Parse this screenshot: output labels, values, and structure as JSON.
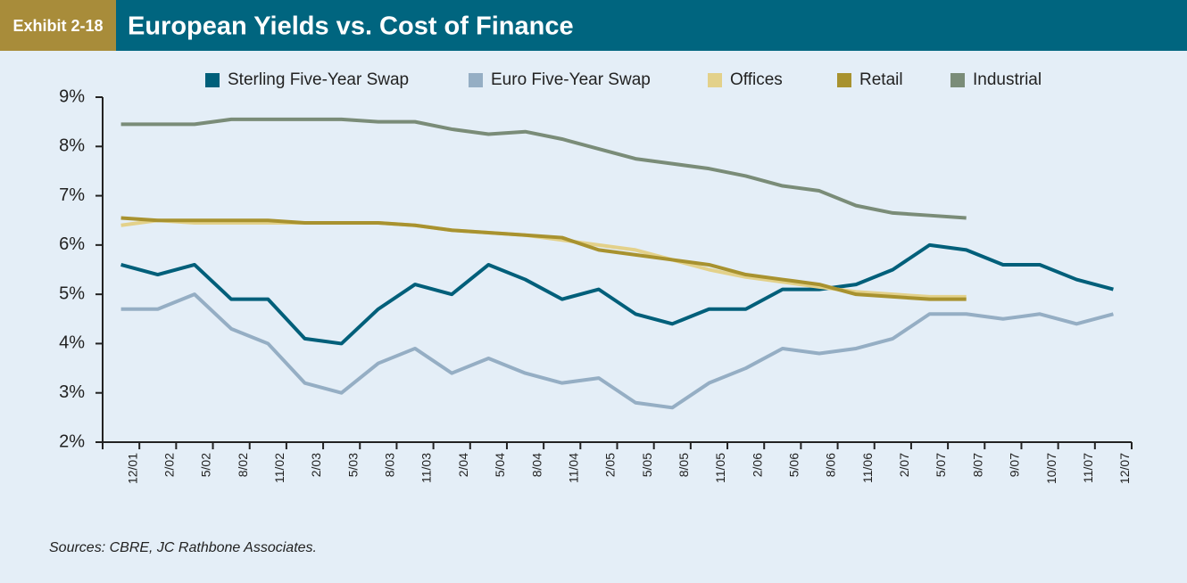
{
  "chart_data": {
    "type": "line",
    "exhibit": "Exhibit 2-18",
    "title": "European Yields vs. Cost of Finance",
    "source": "Sources: CBRE, JC Rathbone Associates.",
    "categories": [
      "12/01",
      "2/02",
      "5/02",
      "8/02",
      "11/02",
      "2/03",
      "5/03",
      "8/03",
      "11/03",
      "2/04",
      "5/04",
      "8/04",
      "11/04",
      "2/05",
      "5/05",
      "8/05",
      "11/05",
      "2/06",
      "5/06",
      "8/06",
      "11/06",
      "2/07",
      "5/07",
      "8/07",
      "9/07",
      "10/07",
      "11/07",
      "12/07"
    ],
    "series": [
      {
        "name": "Sterling Five-Year Swap",
        "color": "#005f7a",
        "values": [
          5.6,
          5.4,
          5.6,
          4.9,
          4.9,
          4.1,
          4.0,
          4.7,
          5.2,
          5.0,
          5.6,
          5.3,
          4.9,
          5.1,
          4.6,
          4.4,
          4.7,
          4.7,
          5.1,
          5.1,
          5.2,
          5.5,
          6.0,
          5.9,
          5.6,
          5.6,
          5.3,
          5.1
        ]
      },
      {
        "name": "Euro Five-Year Swap",
        "color": "#95aec4",
        "values": [
          4.7,
          4.7,
          5.0,
          4.3,
          4.0,
          3.2,
          3.0,
          3.6,
          3.9,
          3.4,
          3.7,
          3.4,
          3.2,
          3.3,
          2.8,
          2.7,
          3.2,
          3.5,
          3.9,
          3.8,
          3.9,
          4.1,
          4.6,
          4.6,
          4.5,
          4.6,
          4.4,
          4.6
        ]
      },
      {
        "name": "Offices",
        "color": "#e3d18a",
        "values": [
          6.4,
          6.5,
          6.45,
          6.45,
          6.45,
          6.45,
          6.45,
          6.45,
          6.4,
          6.3,
          6.25,
          6.2,
          6.1,
          6.0,
          5.9,
          5.7,
          5.5,
          5.35,
          5.25,
          5.15,
          5.05,
          5.0,
          4.95,
          4.95,
          null,
          null,
          null,
          null
        ]
      },
      {
        "name": "Retail",
        "color": "#a8922f",
        "values": [
          6.55,
          6.5,
          6.5,
          6.5,
          6.5,
          6.45,
          6.45,
          6.45,
          6.4,
          6.3,
          6.25,
          6.2,
          6.15,
          5.9,
          5.8,
          5.7,
          5.6,
          5.4,
          5.3,
          5.2,
          5.0,
          4.95,
          4.9,
          4.9,
          null,
          null,
          null,
          null
        ]
      },
      {
        "name": "Industrial",
        "color": "#7a8c78",
        "values": [
          8.45,
          8.45,
          8.45,
          8.55,
          8.55,
          8.55,
          8.55,
          8.5,
          8.5,
          8.35,
          8.25,
          8.3,
          8.15,
          7.95,
          7.75,
          7.65,
          7.55,
          7.4,
          7.2,
          7.1,
          6.8,
          6.65,
          6.6,
          6.55,
          null,
          null,
          null,
          null
        ]
      }
    ],
    "ylim": [
      2,
      9
    ],
    "yticks": [
      {
        "value": 2,
        "label": "2%"
      },
      {
        "value": 3,
        "label": "3%"
      },
      {
        "value": 4,
        "label": "4%"
      },
      {
        "value": 5,
        "label": "5%"
      },
      {
        "value": 6,
        "label": "6%"
      },
      {
        "value": 7,
        "label": "7%"
      },
      {
        "value": 8,
        "label": "8%"
      },
      {
        "value": 9,
        "label": "9%"
      }
    ],
    "legend": "top"
  }
}
